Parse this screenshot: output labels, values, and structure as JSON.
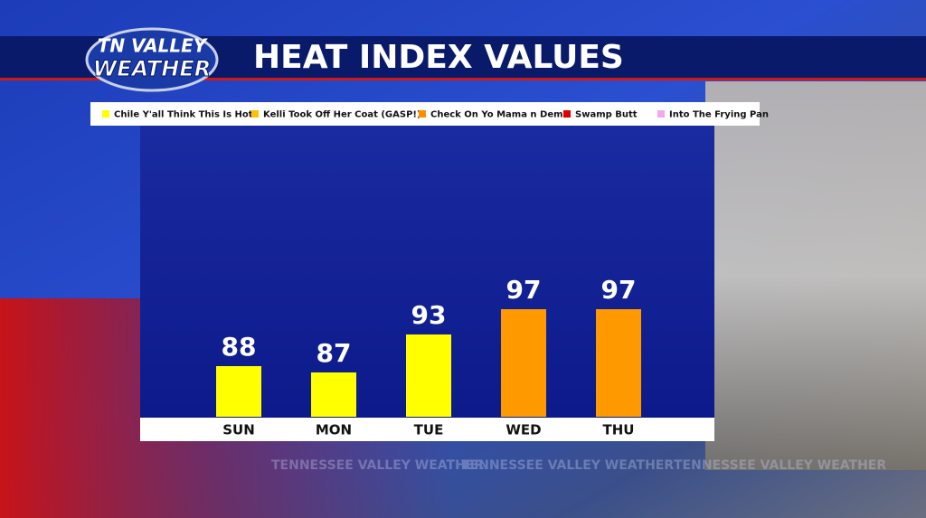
{
  "logo": {
    "line1": "TN VALLEY",
    "line2": "WEATHER"
  },
  "watermark": "TENNESSEE VALLEY WEATHER",
  "chart_data": {
    "type": "bar",
    "title": "HEAT INDEX VALUES",
    "legend": [
      {
        "name": "Chile Y'all Think This Is Hot?",
        "color": "#ffff00"
      },
      {
        "name": "Kelli Took Off Her Coat (GASP!)",
        "color": "#ffc000"
      },
      {
        "name": "Check On Yo Mama n Dem",
        "color": "#ff8c00"
      },
      {
        "name": "Swamp Butt",
        "color": "#e00000"
      },
      {
        "name": "Into The Frying Pan",
        "color": "#f4a6f0"
      }
    ],
    "categories": [
      "SUN",
      "MON",
      "TUE",
      "WED",
      "THU"
    ],
    "values": [
      88,
      87,
      93,
      97,
      97
    ],
    "colors": [
      "#ffff00",
      "#ffff00",
      "#ffff00",
      "#ff9900",
      "#ff9900"
    ],
    "ylim": [
      80,
      126
    ]
  }
}
